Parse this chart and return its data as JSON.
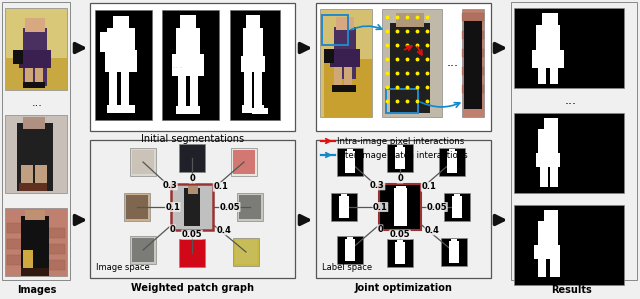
{
  "bg_color": "#f0f0f0",
  "white": "#ffffff",
  "black": "#000000",
  "arrow_color": "#111111",
  "section_labels": [
    "Images",
    "Weighted patch graph",
    "Joint optimization",
    "Results"
  ],
  "label_initial_seg": "Initial segmentations",
  "label_image_space": "Image space",
  "label_label_space": "Label space",
  "legend_intra": "Intra-image pixel interactions",
  "legend_inter": "Inter-image patch interactions",
  "intra_color": "#dd1111",
  "inter_color": "#1188cc",
  "dot_color": "#ffee00",
  "blue_box_color": "#2288cc",
  "center_border_color": "#993333",
  "edge_weights": [
    "0.3",
    "0",
    "0.1",
    "0.1",
    "0.05",
    "0",
    "0.05",
    "0.4"
  ],
  "photo1_colors": {
    "bg": "#d4c080",
    "body": "#4a3020",
    "skin": "#c0906050"
  },
  "photo2_colors": {
    "bg": "#d0c0b0",
    "body": "#1a1a1a"
  },
  "photo3_colors": {
    "bg": "#c07860",
    "body": "#111111"
  }
}
